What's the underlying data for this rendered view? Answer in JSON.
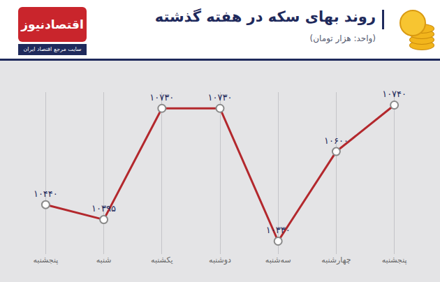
{
  "chart_data": {
    "type": "line",
    "title": "روند بهای سکه در هفته گذشته",
    "subtitle": "(واحد: هزار تومان)",
    "categories": [
      "پنجشنبه",
      "شنبه",
      "یکشنبه",
      "دوشنبه",
      "سه‌شنبه",
      "چهارشنبه",
      "پنجشنبه"
    ],
    "values": [
      10440,
      10395,
      10730,
      10730,
      10330,
      10600,
      10740
    ],
    "value_labels": [
      "۱۰۴۴۰",
      "۱۰۳۹۵",
      "۱۰۷۳۰",
      "۱۰۷۳۰",
      "۱۰۳۳۰",
      "۱۰۶۰۰",
      "۱۰۷۴۰"
    ],
    "data_labels": true,
    "color": "#b3282d",
    "marker": "circle",
    "grid": true,
    "tick_labels": "x"
  },
  "logo": {
    "name": "اقتصادنیوز",
    "tagline": "سایت مرجع اقتصاد ایران"
  }
}
